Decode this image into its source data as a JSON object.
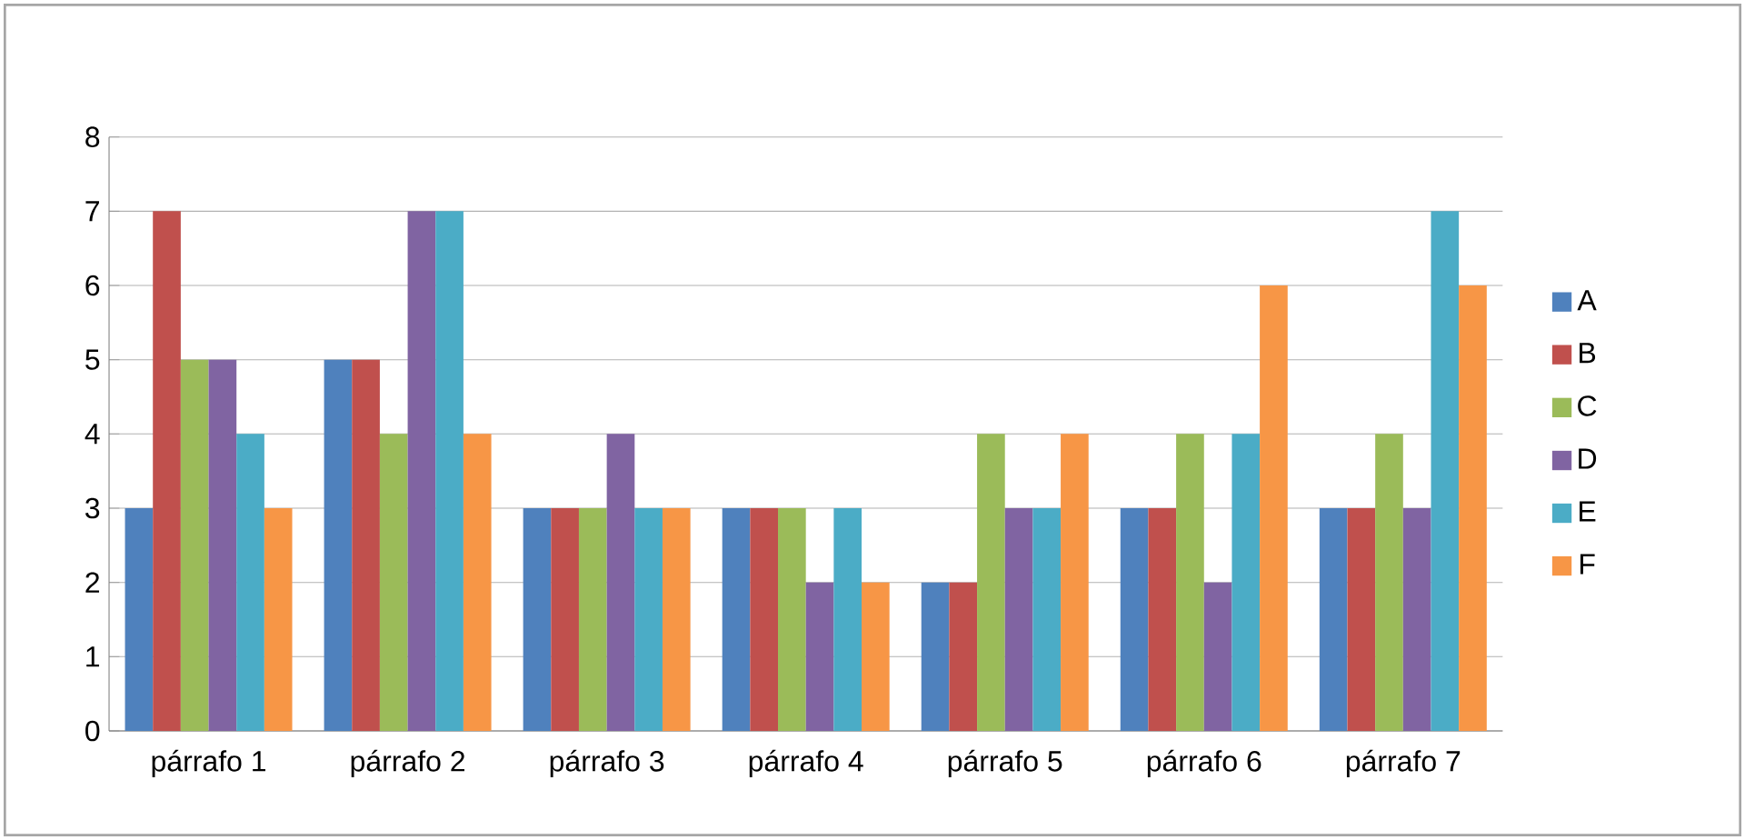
{
  "chart_data": {
    "type": "bar",
    "categories": [
      "párrafo 1",
      "párrafo 2",
      "párrafo 3",
      "párrafo 4",
      "párrafo 5",
      "párrafo 6",
      "párrafo 7"
    ],
    "series": [
      {
        "name": "A",
        "color": "#4f81bd",
        "values": [
          3,
          5,
          3,
          3,
          2,
          3,
          3
        ]
      },
      {
        "name": "B",
        "color": "#c0504d",
        "values": [
          7,
          5,
          3,
          3,
          2,
          3,
          3
        ]
      },
      {
        "name": "C",
        "color": "#9bbb59",
        "values": [
          5,
          4,
          3,
          3,
          4,
          4,
          4
        ]
      },
      {
        "name": "D",
        "color": "#8064a2",
        "values": [
          5,
          7,
          4,
          2,
          3,
          2,
          3
        ]
      },
      {
        "name": "E",
        "color": "#4bacc6",
        "values": [
          4,
          7,
          3,
          3,
          3,
          4,
          7
        ]
      },
      {
        "name": "F",
        "color": "#f79646",
        "values": [
          3,
          4,
          3,
          2,
          4,
          6,
          6
        ]
      }
    ],
    "ylim": [
      0,
      8
    ],
    "yticks": [
      0,
      1,
      2,
      3,
      4,
      5,
      6,
      7,
      8
    ],
    "grid": "y",
    "legend": "right"
  }
}
